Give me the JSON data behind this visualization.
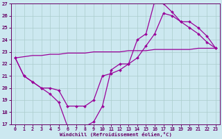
{
  "bg_color": "#cce8f0",
  "line_color": "#990099",
  "grid_color": "#aacccc",
  "axis_color": "#660066",
  "text_color": "#660066",
  "xlabel": "Windchill (Refroidissement éolien,°C)",
  "xlim": [
    -0.5,
    23.5
  ],
  "ylim": [
    17,
    27
  ],
  "yticks": [
    17,
    18,
    19,
    20,
    21,
    22,
    23,
    24,
    25,
    26,
    27
  ],
  "xticks": [
    0,
    1,
    2,
    3,
    4,
    5,
    6,
    7,
    8,
    9,
    10,
    11,
    12,
    13,
    14,
    15,
    16,
    17,
    18,
    19,
    20,
    21,
    22,
    23
  ],
  "series": [
    {
      "x": [
        0,
        1,
        2,
        3,
        4,
        5,
        6,
        7,
        8,
        9,
        10,
        11,
        12,
        13,
        14,
        15,
        16,
        17,
        18,
        19,
        20,
        21,
        22,
        23
      ],
      "y": [
        22.5,
        21.0,
        20.5,
        20.0,
        19.5,
        18.8,
        16.8,
        16.8,
        16.8,
        17.2,
        18.5,
        21.5,
        22.0,
        22.0,
        24.0,
        24.5,
        27.2,
        27.0,
        26.3,
        25.5,
        25.0,
        24.5,
        23.8,
        23.3
      ],
      "marker": true
    },
    {
      "x": [
        0,
        1,
        2,
        3,
        4,
        5,
        6,
        7,
        8,
        9,
        10,
        11,
        12,
        13,
        14,
        15,
        16,
        17,
        18,
        19,
        20,
        21,
        22,
        23
      ],
      "y": [
        22.5,
        21.0,
        20.5,
        20.0,
        20.0,
        19.8,
        18.5,
        18.5,
        18.5,
        19.0,
        21.0,
        21.2,
        21.5,
        22.0,
        22.5,
        23.5,
        24.5,
        26.2,
        26.0,
        25.5,
        25.5,
        25.0,
        24.3,
        23.3
      ],
      "marker": true
    },
    {
      "x": [
        0,
        1,
        2,
        3,
        4,
        5,
        6,
        7,
        8,
        9,
        10,
        11,
        12,
        13,
        14,
        15,
        16,
        17,
        18,
        19,
        20,
        21,
        22,
        23
      ],
      "y": [
        22.5,
        22.6,
        22.7,
        22.7,
        22.8,
        22.8,
        22.9,
        22.9,
        22.9,
        23.0,
        23.0,
        23.0,
        23.0,
        23.1,
        23.1,
        23.1,
        23.2,
        23.2,
        23.2,
        23.2,
        23.2,
        23.3,
        23.3,
        23.3
      ],
      "marker": false
    }
  ]
}
